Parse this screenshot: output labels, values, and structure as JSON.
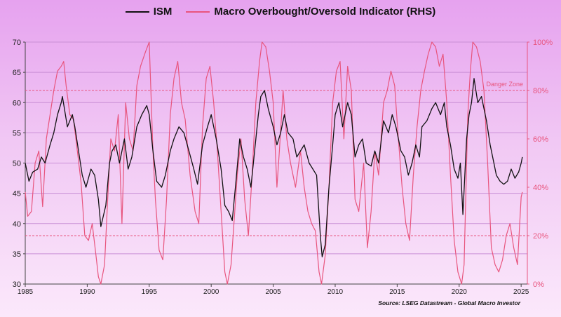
{
  "chart_data": {
    "type": "line",
    "title": "",
    "xlim": [
      1985,
      2025.5
    ],
    "x_ticks": [
      "1985",
      "1990",
      "1995",
      "2000",
      "2005",
      "2010",
      "2015",
      "2020",
      "2025"
    ],
    "y_left": {
      "label": "",
      "lim": [
        30,
        70
      ],
      "ticks": [
        "30",
        "35",
        "40",
        "45",
        "50",
        "55",
        "60",
        "65",
        "70"
      ]
    },
    "y_right": {
      "label": "",
      "lim": [
        0,
        100
      ],
      "ticks": [
        "0%",
        "20%",
        "40%",
        "60%",
        "80%",
        "100%"
      ]
    },
    "grid": "horizontal",
    "legend_position": "top-center",
    "series": [
      {
        "name": "ISM",
        "axis": "left",
        "color": "#111111",
        "points": [
          [
            1985.0,
            50
          ],
          [
            1985.3,
            47
          ],
          [
            1985.6,
            48.5
          ],
          [
            1986.0,
            49
          ],
          [
            1986.3,
            51
          ],
          [
            1986.6,
            50
          ],
          [
            1987.0,
            53
          ],
          [
            1987.3,
            55
          ],
          [
            1987.6,
            58
          ],
          [
            1987.9,
            60
          ],
          [
            1988.0,
            61
          ],
          [
            1988.4,
            56
          ],
          [
            1988.8,
            58
          ],
          [
            1989.0,
            56
          ],
          [
            1989.3,
            52
          ],
          [
            1989.6,
            48
          ],
          [
            1989.9,
            46
          ],
          [
            1990.3,
            49
          ],
          [
            1990.6,
            48
          ],
          [
            1990.9,
            44
          ],
          [
            1991.1,
            39.5
          ],
          [
            1991.5,
            43
          ],
          [
            1991.8,
            50
          ],
          [
            1992.0,
            52
          ],
          [
            1992.3,
            53
          ],
          [
            1992.6,
            50
          ],
          [
            1993.0,
            54
          ],
          [
            1993.3,
            49
          ],
          [
            1993.6,
            51
          ],
          [
            1994.0,
            56
          ],
          [
            1994.4,
            58
          ],
          [
            1994.8,
            59.5
          ],
          [
            1995.0,
            58
          ],
          [
            1995.3,
            52
          ],
          [
            1995.6,
            47
          ],
          [
            1996.0,
            46
          ],
          [
            1996.3,
            48
          ],
          [
            1996.7,
            52
          ],
          [
            1997.0,
            54
          ],
          [
            1997.4,
            56
          ],
          [
            1997.8,
            55
          ],
          [
            1998.2,
            52
          ],
          [
            1998.6,
            49
          ],
          [
            1998.9,
            46.5
          ],
          [
            1999.3,
            53
          ],
          [
            1999.7,
            56
          ],
          [
            2000.0,
            58
          ],
          [
            2000.4,
            54
          ],
          [
            2000.8,
            49
          ],
          [
            2001.1,
            43
          ],
          [
            2001.4,
            42
          ],
          [
            2001.7,
            40.5
          ],
          [
            2002.0,
            47
          ],
          [
            2002.3,
            54
          ],
          [
            2002.6,
            51
          ],
          [
            2002.9,
            49
          ],
          [
            2003.2,
            46
          ],
          [
            2003.5,
            52
          ],
          [
            2003.8,
            58
          ],
          [
            2004.0,
            61
          ],
          [
            2004.3,
            62
          ],
          [
            2004.6,
            59
          ],
          [
            2005.0,
            56
          ],
          [
            2005.3,
            53
          ],
          [
            2005.6,
            55
          ],
          [
            2005.9,
            58
          ],
          [
            2006.2,
            55
          ],
          [
            2006.6,
            54
          ],
          [
            2006.9,
            51
          ],
          [
            2007.2,
            52
          ],
          [
            2007.5,
            53
          ],
          [
            2007.9,
            50
          ],
          [
            2008.2,
            49
          ],
          [
            2008.5,
            48
          ],
          [
            2008.8,
            38
          ],
          [
            2008.95,
            34.5
          ],
          [
            2009.2,
            36.5
          ],
          [
            2009.5,
            46
          ],
          [
            2009.8,
            53
          ],
          [
            2010.0,
            58
          ],
          [
            2010.3,
            60
          ],
          [
            2010.6,
            56
          ],
          [
            2011.0,
            60
          ],
          [
            2011.3,
            58
          ],
          [
            2011.6,
            51
          ],
          [
            2011.9,
            53
          ],
          [
            2012.2,
            54
          ],
          [
            2012.5,
            50
          ],
          [
            2012.9,
            49.5
          ],
          [
            2013.2,
            52
          ],
          [
            2013.5,
            50
          ],
          [
            2013.9,
            57
          ],
          [
            2014.3,
            55
          ],
          [
            2014.6,
            58
          ],
          [
            2014.9,
            56
          ],
          [
            2015.3,
            52
          ],
          [
            2015.6,
            51
          ],
          [
            2015.9,
            48
          ],
          [
            2016.2,
            50
          ],
          [
            2016.5,
            53
          ],
          [
            2016.8,
            51
          ],
          [
            2017.0,
            56
          ],
          [
            2017.4,
            57
          ],
          [
            2017.8,
            59
          ],
          [
            2018.1,
            60
          ],
          [
            2018.5,
            58
          ],
          [
            2018.8,
            60
          ],
          [
            2019.0,
            56
          ],
          [
            2019.3,
            53
          ],
          [
            2019.6,
            49
          ],
          [
            2019.9,
            47.5
          ],
          [
            2020.1,
            50
          ],
          [
            2020.3,
            41.5
          ],
          [
            2020.6,
            54
          ],
          [
            2020.8,
            58
          ],
          [
            2021.0,
            60
          ],
          [
            2021.2,
            64
          ],
          [
            2021.5,
            60
          ],
          [
            2021.8,
            61
          ],
          [
            2022.2,
            57
          ],
          [
            2022.5,
            53
          ],
          [
            2022.8,
            50
          ],
          [
            2023.0,
            48
          ],
          [
            2023.3,
            47
          ],
          [
            2023.6,
            46.5
          ],
          [
            2023.9,
            47
          ],
          [
            2024.2,
            49
          ],
          [
            2024.5,
            47.5
          ],
          [
            2024.8,
            48.5
          ],
          [
            2025.0,
            50
          ],
          [
            2025.1,
            51
          ]
        ]
      },
      {
        "name": "Macro Overbought/Oversold Indicator (RHS)",
        "axis": "right",
        "color": "#e8557e",
        "points": [
          [
            1985.0,
            38
          ],
          [
            1985.2,
            28
          ],
          [
            1985.5,
            30
          ],
          [
            1985.8,
            50
          ],
          [
            1986.1,
            55
          ],
          [
            1986.4,
            32
          ],
          [
            1986.7,
            60
          ],
          [
            1987.0,
            70
          ],
          [
            1987.3,
            80
          ],
          [
            1987.6,
            88
          ],
          [
            1987.9,
            90
          ],
          [
            1988.1,
            92
          ],
          [
            1988.3,
            82
          ],
          [
            1988.6,
            70
          ],
          [
            1988.9,
            68
          ],
          [
            1989.2,
            55
          ],
          [
            1989.5,
            42
          ],
          [
            1989.8,
            20
          ],
          [
            1990.1,
            18
          ],
          [
            1990.4,
            25
          ],
          [
            1990.7,
            12
          ],
          [
            1990.9,
            3
          ],
          [
            1991.1,
            0
          ],
          [
            1991.4,
            8
          ],
          [
            1991.7,
            40
          ],
          [
            1991.9,
            60
          ],
          [
            1992.2,
            55
          ],
          [
            1992.5,
            70
          ],
          [
            1992.8,
            25
          ],
          [
            1993.1,
            75
          ],
          [
            1993.4,
            60
          ],
          [
            1993.7,
            55
          ],
          [
            1994.0,
            82
          ],
          [
            1994.3,
            90
          ],
          [
            1994.7,
            96
          ],
          [
            1995.0,
            100
          ],
          [
            1995.3,
            55
          ],
          [
            1995.5,
            35
          ],
          [
            1995.8,
            14
          ],
          [
            1996.1,
            10
          ],
          [
            1996.4,
            35
          ],
          [
            1996.7,
            70
          ],
          [
            1997.0,
            85
          ],
          [
            1997.3,
            92
          ],
          [
            1997.6,
            75
          ],
          [
            1997.9,
            68
          ],
          [
            1998.3,
            45
          ],
          [
            1998.7,
            30
          ],
          [
            1999.0,
            25
          ],
          [
            1999.3,
            65
          ],
          [
            1999.6,
            85
          ],
          [
            1999.9,
            90
          ],
          [
            2000.2,
            75
          ],
          [
            2000.5,
            55
          ],
          [
            2000.8,
            30
          ],
          [
            2001.1,
            5
          ],
          [
            2001.3,
            0
          ],
          [
            2001.6,
            8
          ],
          [
            2001.9,
            30
          ],
          [
            2002.1,
            45
          ],
          [
            2002.4,
            60
          ],
          [
            2002.7,
            35
          ],
          [
            2003.0,
            20
          ],
          [
            2003.3,
            45
          ],
          [
            2003.6,
            75
          ],
          [
            2003.9,
            92
          ],
          [
            2004.1,
            100
          ],
          [
            2004.4,
            98
          ],
          [
            2004.7,
            88
          ],
          [
            2005.0,
            75
          ],
          [
            2005.3,
            40
          ],
          [
            2005.5,
            55
          ],
          [
            2005.8,
            80
          ],
          [
            2006.1,
            60
          ],
          [
            2006.4,
            50
          ],
          [
            2006.8,
            40
          ],
          [
            2007.2,
            55
          ],
          [
            2007.5,
            40
          ],
          [
            2007.8,
            30
          ],
          [
            2008.1,
            25
          ],
          [
            2008.4,
            22
          ],
          [
            2008.7,
            5
          ],
          [
            2008.9,
            0
          ],
          [
            2009.2,
            12
          ],
          [
            2009.5,
            40
          ],
          [
            2009.8,
            75
          ],
          [
            2010.1,
            88
          ],
          [
            2010.4,
            92
          ],
          [
            2010.7,
            60
          ],
          [
            2011.0,
            90
          ],
          [
            2011.3,
            80
          ],
          [
            2011.6,
            35
          ],
          [
            2011.9,
            30
          ],
          [
            2012.3,
            50
          ],
          [
            2012.6,
            15
          ],
          [
            2012.9,
            30
          ],
          [
            2013.2,
            55
          ],
          [
            2013.5,
            45
          ],
          [
            2013.9,
            75
          ],
          [
            2014.2,
            80
          ],
          [
            2014.5,
            88
          ],
          [
            2014.8,
            82
          ],
          [
            2015.1,
            60
          ],
          [
            2015.4,
            40
          ],
          [
            2015.7,
            25
          ],
          [
            2016.0,
            18
          ],
          [
            2016.3,
            45
          ],
          [
            2016.6,
            65
          ],
          [
            2016.9,
            80
          ],
          [
            2017.2,
            88
          ],
          [
            2017.5,
            95
          ],
          [
            2017.8,
            100
          ],
          [
            2018.1,
            98
          ],
          [
            2018.4,
            90
          ],
          [
            2018.7,
            95
          ],
          [
            2019.0,
            75
          ],
          [
            2019.3,
            45
          ],
          [
            2019.6,
            18
          ],
          [
            2019.9,
            5
          ],
          [
            2020.2,
            0
          ],
          [
            2020.4,
            8
          ],
          [
            2020.7,
            70
          ],
          [
            2020.9,
            88
          ],
          [
            2021.1,
            100
          ],
          [
            2021.4,
            98
          ],
          [
            2021.7,
            92
          ],
          [
            2022.0,
            80
          ],
          [
            2022.3,
            50
          ],
          [
            2022.6,
            15
          ],
          [
            2022.9,
            8
          ],
          [
            2023.2,
            5
          ],
          [
            2023.5,
            10
          ],
          [
            2023.8,
            20
          ],
          [
            2024.1,
            25
          ],
          [
            2024.4,
            15
          ],
          [
            2024.7,
            8
          ],
          [
            2025.0,
            36
          ],
          [
            2025.1,
            38
          ]
        ]
      }
    ],
    "reference_lines": [
      {
        "axis": "right",
        "value": 80,
        "label": "Danger Zone"
      },
      {
        "axis": "right",
        "value": 20,
        "label": ""
      }
    ],
    "source": "Source: LSEG Datastream - Global Macro Investor"
  }
}
